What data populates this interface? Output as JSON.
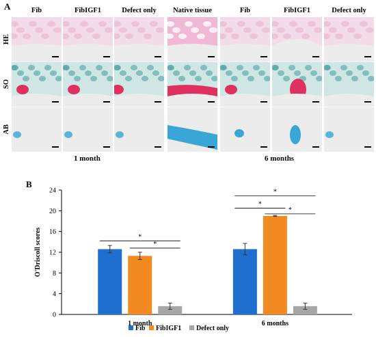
{
  "figure_a": {
    "panel_label": "A",
    "column_headers": [
      "Fib",
      "FibIGF1",
      "Defect only",
      "Native tissue",
      "Fib",
      "FibIGF1",
      "Defect only"
    ],
    "row_headers": [
      "HE",
      "SO",
      "AB"
    ],
    "timepoint_labels": [
      "1 month",
      "6 months"
    ],
    "stain_colors": {
      "HE": "#e9a2c6",
      "SO": "#3f9f9a",
      "SO_red": "#e03060",
      "AB": "#3aa6d6"
    }
  },
  "chart_data": {
    "panel_label": "B",
    "type": "bar",
    "categories": [
      "1 month",
      "6 months"
    ],
    "series": [
      {
        "name": "Fib",
        "color": "#1f6fd1",
        "values": [
          12.6,
          12.6
        ],
        "errors": [
          0.7,
          1.1
        ]
      },
      {
        "name": "FibIGF1",
        "color": "#f28a22",
        "values": [
          11.3,
          19.0
        ],
        "errors": [
          0.7,
          0.1
        ]
      },
      {
        "name": "Defect only",
        "color": "#a6a6a6",
        "values": [
          1.6,
          1.6
        ],
        "errors": [
          0.6,
          0.6
        ]
      }
    ],
    "ylabel": "O'Driscoll scores",
    "ylim": [
      0,
      24
    ],
    "yticks": [
      0,
      4,
      8,
      12,
      16,
      20,
      24
    ],
    "legend": "bottom",
    "grid": false,
    "significance": [
      {
        "group": "1 month",
        "from": "Fib",
        "to": "Defect only",
        "label": "*"
      },
      {
        "group": "1 month",
        "from": "FibIGF1",
        "to": "Defect only",
        "label": "*"
      },
      {
        "group": "6 months",
        "from": "Fib",
        "to": "Defect only",
        "label": "*"
      },
      {
        "group": "6 months",
        "from": "Fib",
        "to": "FibIGF1",
        "label": "*"
      },
      {
        "group": "6 months",
        "from": "FibIGF1",
        "to": "Defect only",
        "label": "*"
      }
    ]
  }
}
